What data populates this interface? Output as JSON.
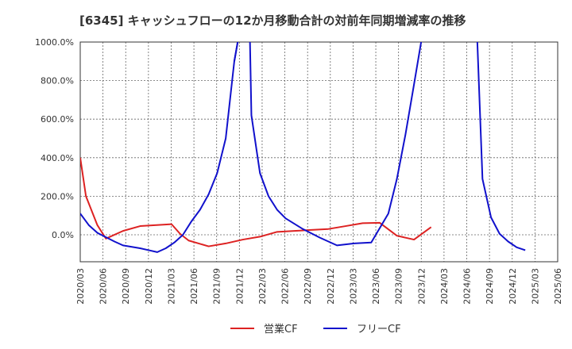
{
  "chart_data": {
    "type": "line",
    "title": "[6345]  キャッシュフローの12か月移動合計の対前年同期増減率の推移",
    "xlabel": "",
    "ylabel": "",
    "ylim": [
      -140,
      1000
    ],
    "yticks": [
      0,
      200,
      400,
      600,
      800,
      1000
    ],
    "ytick_labels": [
      "0.0%",
      "200.0%",
      "400.0%",
      "600.0%",
      "800.0%",
      "1000.0%"
    ],
    "x_ticks": [
      "2020/03",
      "2020/06",
      "2020/09",
      "2020/12",
      "2021/03",
      "2021/06",
      "2021/09",
      "2021/12",
      "2022/03",
      "2022/06",
      "2022/09",
      "2022/12",
      "2023/03",
      "2023/06",
      "2023/09",
      "2023/12",
      "2024/03",
      "2024/06",
      "2024/09",
      "2024/12",
      "2025/03",
      "2025/06"
    ],
    "grid": true,
    "legend_position": "bottom-center",
    "series": [
      {
        "name": "営業CF",
        "color": "#dd2222",
        "points": [
          [
            0,
            400
          ],
          [
            2,
            200
          ],
          [
            6,
            50
          ],
          [
            9,
            -20
          ],
          [
            15,
            20
          ],
          [
            21,
            45
          ],
          [
            32,
            55
          ],
          [
            35,
            5
          ],
          [
            38,
            -30
          ],
          [
            45,
            -60
          ],
          [
            51,
            -45
          ],
          [
            57,
            -25
          ],
          [
            63,
            -10
          ],
          [
            69,
            15
          ],
          [
            75,
            20
          ],
          [
            81,
            25
          ],
          [
            87,
            30
          ],
          [
            93,
            45
          ],
          [
            99,
            60
          ],
          [
            105,
            62
          ],
          [
            111,
            -5
          ],
          [
            117,
            -25
          ],
          [
            123,
            40
          ]
        ]
      },
      {
        "name": "フリーCF",
        "color": "#1111cc",
        "points": [
          [
            0,
            110
          ],
          [
            3,
            50
          ],
          [
            6,
            10
          ],
          [
            12,
            -35
          ],
          [
            15,
            -55
          ],
          [
            21,
            -70
          ],
          [
            24,
            -80
          ],
          [
            27,
            -90
          ],
          [
            30,
            -70
          ],
          [
            33,
            -40
          ],
          [
            36,
            0
          ],
          [
            39,
            70
          ],
          [
            42,
            130
          ],
          [
            45,
            210
          ],
          [
            48,
            320
          ],
          [
            51,
            500
          ],
          [
            54,
            900
          ],
          [
            55.2,
            1000
          ]
        ],
        "segments": [
          [
            [
              55.2,
              1000
            ],
            [
              54,
              900
            ]
          ],
          [
            [
              59.5,
              1000
            ],
            [
              60,
              620
            ],
            [
              63,
              320
            ],
            [
              66,
              200
            ],
            [
              69,
              130
            ],
            [
              72,
              85
            ],
            [
              78,
              30
            ],
            [
              84,
              -15
            ],
            [
              90,
              -55
            ],
            [
              96,
              -45
            ],
            [
              102,
              -40
            ],
            [
              108,
              110
            ],
            [
              111,
              290
            ],
            [
              114,
              520
            ],
            [
              117,
              780
            ],
            [
              119.5,
              1000
            ]
          ],
          [
            [
              139.2,
              1000
            ],
            [
              141,
              290
            ],
            [
              144,
              90
            ],
            [
              147,
              5
            ],
            [
              150,
              -35
            ],
            [
              153,
              -65
            ],
            [
              156,
              -80
            ]
          ]
        ]
      }
    ]
  },
  "legend": {
    "items": [
      {
        "label": "営業CF",
        "color": "#dd2222"
      },
      {
        "label": "フリーCF",
        "color": "#1111cc"
      }
    ]
  }
}
